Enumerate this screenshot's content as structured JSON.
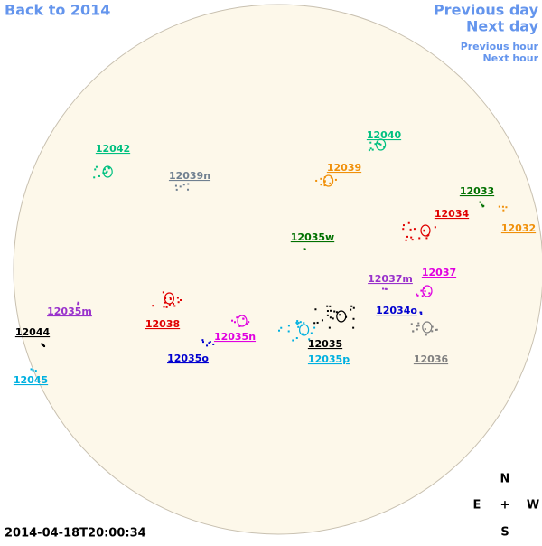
{
  "nav": {
    "back": "Back to 2014",
    "previous_day": "Previous day",
    "next_day": "Next day",
    "previous_hour": "Previous hour",
    "next_hour": "Next hour"
  },
  "timestamp": "2014-04-18T20:00:34",
  "compass": {
    "north": "N",
    "east": "E",
    "center": "+",
    "west": "W",
    "south": "S"
  },
  "regions": [
    {
      "label": "12042",
      "color": "#00c080"
    },
    {
      "label": "12039n",
      "color": "#708090"
    },
    {
      "label": "12040",
      "color": "#00c080"
    },
    {
      "label": "12039",
      "color": "#f0900a"
    },
    {
      "label": "12033",
      "color": "#007000"
    },
    {
      "label": "12034",
      "color": "#e00000"
    },
    {
      "label": "12032",
      "color": "#f0900a"
    },
    {
      "label": "12035w",
      "color": "#007000"
    },
    {
      "label": "12037m",
      "color": "#9932cc"
    },
    {
      "label": "12037",
      "color": "#e000e0"
    },
    {
      "label": "12035m",
      "color": "#9932cc"
    },
    {
      "label": "12034o",
      "color": "#0000d0"
    },
    {
      "label": "12038",
      "color": "#e00000"
    },
    {
      "label": "12035n",
      "color": "#e000e0"
    },
    {
      "label": "12044",
      "color": "#000000"
    },
    {
      "label": "12035",
      "color": "#000000"
    },
    {
      "label": "12036",
      "color": "#808080"
    },
    {
      "label": "12035o",
      "color": "#0000d0"
    },
    {
      "label": "12035p",
      "color": "#00b0e0"
    },
    {
      "label": "12045",
      "color": "#00b0e0"
    }
  ]
}
